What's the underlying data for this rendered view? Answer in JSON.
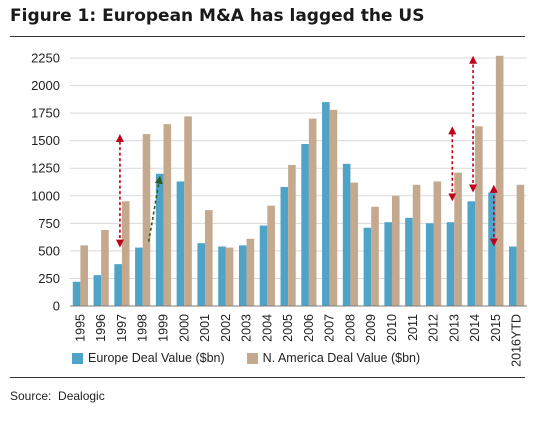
{
  "figure": {
    "title": "Figure 1: European M&A has lagged the US",
    "source": "Source:  Dealogic"
  },
  "colors": {
    "europe": "#4fa3c7",
    "namerica": "#c4a98e",
    "arrow_red": "#c0001a",
    "arrow_green": "#2e5e1e",
    "gridline": "#d9d9d9",
    "axis": "#7f7f7f"
  },
  "chart_data": {
    "type": "bar",
    "title": "Figure 1: European M&A has lagged the US",
    "xlabel": "",
    "ylabel": "",
    "ylim": [
      0,
      2250
    ],
    "yticks": [
      0,
      250,
      500,
      750,
      1000,
      1250,
      1500,
      1750,
      2000,
      2250
    ],
    "grid": true,
    "legend_position": "bottom",
    "categories": [
      "1995",
      "1996",
      "1997",
      "1998",
      "1999",
      "2000",
      "2001",
      "2002",
      "2003",
      "2004",
      "2005",
      "2006",
      "2007",
      "2008",
      "2009",
      "2010",
      "2011",
      "2012",
      "2013",
      "2014",
      "2015",
      "2016YTD"
    ],
    "series": [
      {
        "name": "Europe Deal Value ($bn)",
        "color": "#4fa3c7",
        "values": [
          220,
          280,
          380,
          530,
          1200,
          1130,
          570,
          540,
          550,
          730,
          1080,
          1470,
          1850,
          1290,
          710,
          760,
          800,
          750,
          760,
          950,
          1030,
          540
        ]
      },
      {
        "name": "N. America Deal Value ($bn)",
        "color": "#c4a98e",
        "values": [
          550,
          690,
          950,
          1560,
          1650,
          1720,
          870,
          530,
          610,
          910,
          1280,
          1700,
          1780,
          1120,
          900,
          1000,
          1100,
          1130,
          1210,
          1630,
          2270,
          1100
        ]
      }
    ],
    "annotations": [
      {
        "type": "double-arrow",
        "color": "red",
        "category": "1997",
        "from": 530,
        "to": 1560
      },
      {
        "type": "arrow",
        "color": "green",
        "style": "dashed",
        "from_category": "1998",
        "to_category": "1999",
        "from": 530,
        "to": 1200
      },
      {
        "type": "double-arrow",
        "color": "red",
        "category": "2013",
        "from": 950,
        "to": 1630
      },
      {
        "type": "double-arrow",
        "color": "red",
        "category": "2014",
        "from": 1030,
        "to": 2270
      },
      {
        "type": "double-arrow",
        "color": "red",
        "category": "2015",
        "from": 540,
        "to": 1100
      }
    ]
  }
}
